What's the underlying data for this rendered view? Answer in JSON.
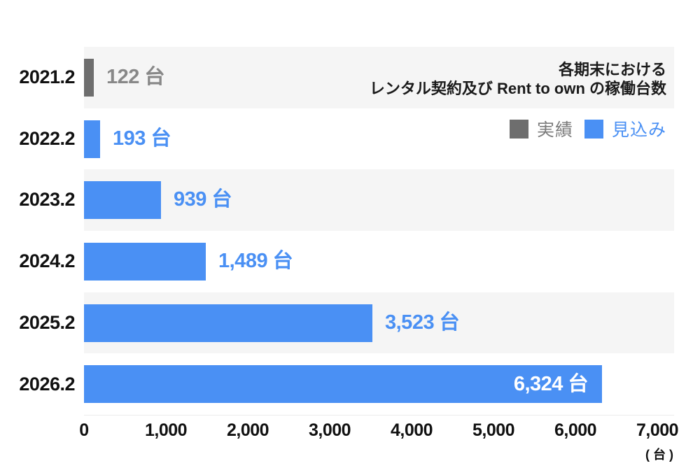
{
  "header": {
    "title_line1": "各期末における",
    "title_line2": "レンタル契約及び Rent to own の稼働台数"
  },
  "legend": {
    "items": [
      {
        "label": "実績",
        "swatch_color": "#6e6e6e",
        "text_color": "#7b7b7b"
      },
      {
        "label": "見込み",
        "swatch_color": "#4a90f4",
        "text_color": "#4a90f4"
      }
    ]
  },
  "chart_data": {
    "type": "bar",
    "orientation": "horizontal",
    "title": "各期末におけるレンタル契約及び Rent to own の稼働台数",
    "categories": [
      "2021.2",
      "2022.2",
      "2023.2",
      "2024.2",
      "2025.2",
      "2026.2"
    ],
    "values": [
      122,
      193,
      939,
      1489,
      3523,
      6324
    ],
    "value_labels": [
      "122 台",
      "193 台",
      "939 台",
      "1,489 台",
      "3,523 台",
      "6,324 台"
    ],
    "series_by_category": [
      "実績",
      "見込み",
      "見込み",
      "見込み",
      "見込み",
      "見込み"
    ],
    "xlim": [
      0,
      7000
    ],
    "x_ticks": [
      0,
      1000,
      2000,
      3000,
      4000,
      5000,
      6000,
      7000
    ],
    "x_tick_labels": [
      "0",
      "1,000",
      "2,000",
      "3,000",
      "4,000",
      "5,000",
      "6,000",
      "7,000"
    ],
    "x_unit": "( 台 )",
    "legend_position": "top-right",
    "grid": false,
    "row_band_color": "#f5f5f5"
  },
  "colors": {
    "bar_actual": "#6e6e6e",
    "bar_forecast": "#4a90f4",
    "value_text_actual": "#888888",
    "value_text_forecast": "#4a90f4",
    "value_text_inside_bar": "#ffffff",
    "band": "#f5f5f5",
    "axis_text": "#111111",
    "title_text": "#1a1a1a"
  }
}
